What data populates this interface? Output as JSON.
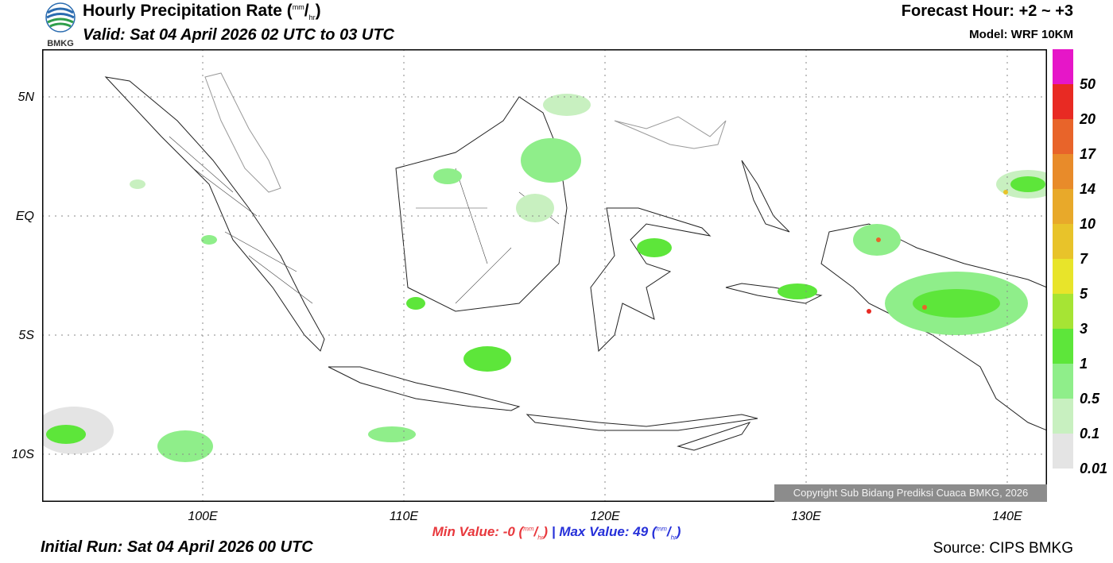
{
  "header": {
    "logo_text": "BMKG",
    "title_prefix": "Hourly Precipitation Rate (",
    "title_unit_top": "mm",
    "title_unit_bottom": "hr",
    "title_suffix": ")",
    "valid": "Valid: Sat 04 April 2026 02 UTC to 03 UTC",
    "forecast_hour": "Forecast Hour: +2 ~ +3",
    "model": "Model: WRF 10KM"
  },
  "map": {
    "lat_labels": [
      "5N",
      "EQ",
      "5S",
      "10S"
    ],
    "lon_labels": [
      "100E",
      "110E",
      "120E",
      "130E",
      "140E"
    ],
    "lat_values": [
      5,
      0,
      -5,
      -10
    ],
    "lon_values": [
      100,
      110,
      120,
      130,
      140
    ],
    "extent": {
      "lon_min": 92,
      "lon_max": 142,
      "lat_min": -12,
      "lat_max": 7
    },
    "gridlines": true,
    "copyright": "Copyright Sub Bidang Prediksi Cuaca BMKG, 2026"
  },
  "colorbar": {
    "labels": [
      "50",
      "20",
      "17",
      "14",
      "10",
      "7",
      "5",
      "3",
      "1",
      "0.5",
      "0.1",
      "0.01"
    ],
    "colors": [
      "#e616c8",
      "#e82a23",
      "#e8642a",
      "#e88b2a",
      "#e8a92a",
      "#e8c32a",
      "#e8e42a",
      "#a6e434",
      "#5de63a",
      "#8fee8a",
      "#c8f0c0",
      "#e4e4e4"
    ]
  },
  "stats": {
    "min_label": "Min Value:",
    "min_value": "-0",
    "max_label": "Max Value:",
    "max_value": "49",
    "unit_top": "mm",
    "unit_bottom": "hr",
    "separator": "|"
  },
  "footer": {
    "initial_run": "Initial Run: Sat 04 April 2026 00 UTC",
    "source": "Source: CIPS BMKG"
  }
}
